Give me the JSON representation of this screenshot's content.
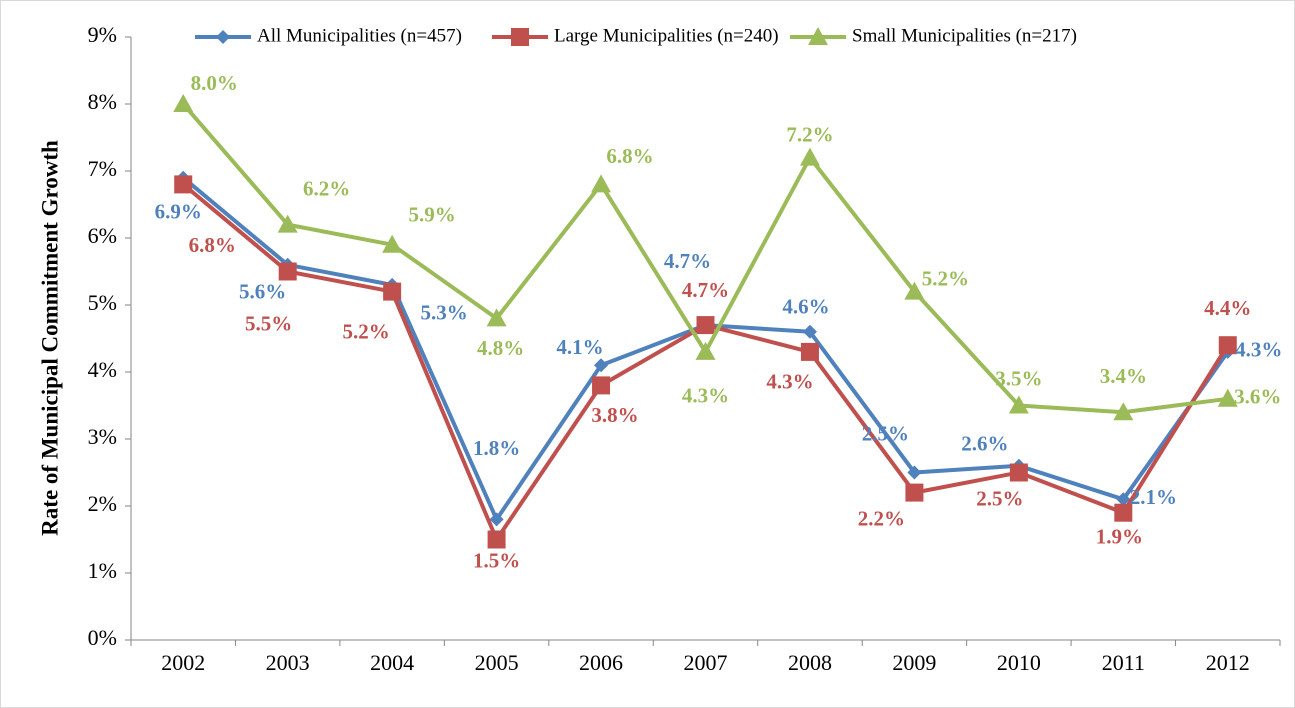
{
  "chart_data": {
    "type": "line",
    "y_label": "Rate of Municipal Commitment Growth",
    "categories": [
      "2002",
      "2003",
      "2004",
      "2005",
      "2006",
      "2007",
      "2008",
      "2009",
      "2010",
      "2011",
      "2012"
    ],
    "series": [
      {
        "name": "All Municipalities (n=457)",
        "color": "#4f81bd",
        "marker": "diamond",
        "values": [
          6.9,
          5.6,
          5.3,
          1.8,
          4.1,
          4.7,
          4.6,
          2.5,
          2.6,
          2.1,
          4.3
        ],
        "value_labels": [
          "6.9%",
          "5.6%",
          "5.3%",
          "1.8%",
          "4.1%",
          "4.7%",
          "4.6%",
          "2.5%",
          "2.6%",
          "2.1%",
          "4.3%"
        ]
      },
      {
        "name": "Large Municipalities (n=240)",
        "color": "#c0504d",
        "marker": "square",
        "values": [
          6.8,
          5.5,
          5.2,
          1.5,
          3.8,
          4.7,
          4.3,
          2.2,
          2.5,
          1.9,
          4.4
        ],
        "value_labels": [
          "6.8%",
          "5.5%",
          "5.2%",
          "1.5%",
          "3.8%",
          "4.7%",
          "4.3%",
          "2.2%",
          "2.5%",
          "1.9%",
          "4.4%"
        ]
      },
      {
        "name": "Small Municipalities (n=217)",
        "color": "#9bbb59",
        "marker": "triangle",
        "values": [
          8.0,
          6.2,
          5.9,
          4.8,
          6.8,
          4.3,
          7.2,
          5.2,
          3.5,
          3.4,
          3.6
        ],
        "value_labels": [
          "8.0%",
          "6.2%",
          "5.9%",
          "4.8%",
          "6.8%",
          "4.3%",
          "7.2%",
          "5.2%",
          "3.5%",
          "3.4%",
          "3.6%"
        ]
      }
    ],
    "ylim": [
      0,
      9
    ],
    "yticks": [
      {
        "value": 0,
        "label": "0%"
      },
      {
        "value": 1,
        "label": "1%"
      },
      {
        "value": 2,
        "label": "2%"
      },
      {
        "value": 3,
        "label": "3%"
      },
      {
        "value": 4,
        "label": "4%"
      },
      {
        "value": 5,
        "label": "5%"
      },
      {
        "value": 6,
        "label": "6%"
      },
      {
        "value": 7,
        "label": "7%"
      },
      {
        "value": 8,
        "label": "8%"
      },
      {
        "value": 9,
        "label": "9%"
      }
    ],
    "legend": "top"
  }
}
